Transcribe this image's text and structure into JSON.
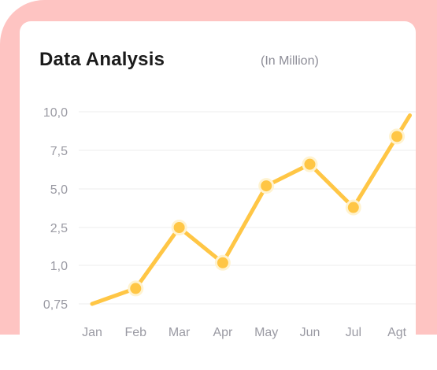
{
  "header": {
    "title": "Data Analysis",
    "subtitle": "(In Million)"
  },
  "colors": {
    "frame": "#FEC4C2",
    "line": "#FFC645",
    "marker_stroke": "#FFF3D0",
    "grid": "#EEEEEE"
  },
  "chart_data": {
    "type": "line",
    "categories": [
      "Jan",
      "Feb",
      "Mar",
      "Apr",
      "May",
      "Jun",
      "Jul",
      "Agt"
    ],
    "y_tick_labels": [
      "0,75",
      "1,0",
      "2,5",
      "5,0",
      "7,5",
      "10,0"
    ],
    "series": [
      {
        "values": [
          0.75,
          0.85,
          2.5,
          1.1,
          5.2,
          6.6,
          3.8,
          8.4
        ],
        "markers": [
          false,
          true,
          true,
          true,
          true,
          true,
          true,
          true
        ]
      }
    ],
    "line_extends_past_last_point": true,
    "grid": true,
    "legend": "none"
  }
}
